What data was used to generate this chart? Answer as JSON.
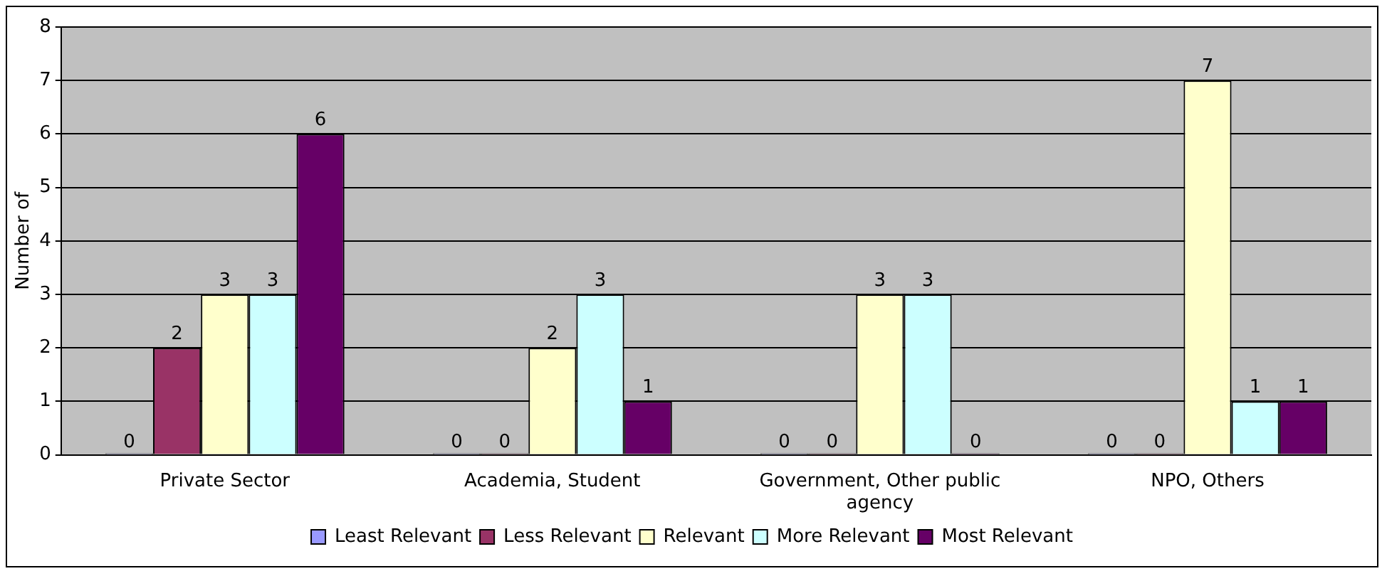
{
  "chart_data": {
    "type": "bar",
    "ylabel": "Number of",
    "categories": [
      "Private Sector",
      "Academia, Student",
      "Government, Other public agency",
      "NPO, Others"
    ],
    "series": [
      {
        "name": "Least Relevant",
        "color": "#9999ff",
        "values": [
          0,
          0,
          0,
          0
        ]
      },
      {
        "name": "Less Relevant",
        "color": "#993366",
        "values": [
          2,
          0,
          0,
          0
        ]
      },
      {
        "name": "Relevant",
        "color": "#ffffcc",
        "values": [
          3,
          2,
          3,
          7
        ]
      },
      {
        "name": "More Relevant",
        "color": "#ccffff",
        "values": [
          3,
          3,
          3,
          1
        ]
      },
      {
        "name": "Most Relevant",
        "color": "#660066",
        "values": [
          6,
          1,
          0,
          1
        ]
      }
    ],
    "ylim": [
      0,
      8
    ],
    "yticks": [
      0,
      1,
      2,
      3,
      4,
      5,
      6,
      7,
      8
    ],
    "grid": "y",
    "legend": "bottom",
    "data_labels": true
  }
}
